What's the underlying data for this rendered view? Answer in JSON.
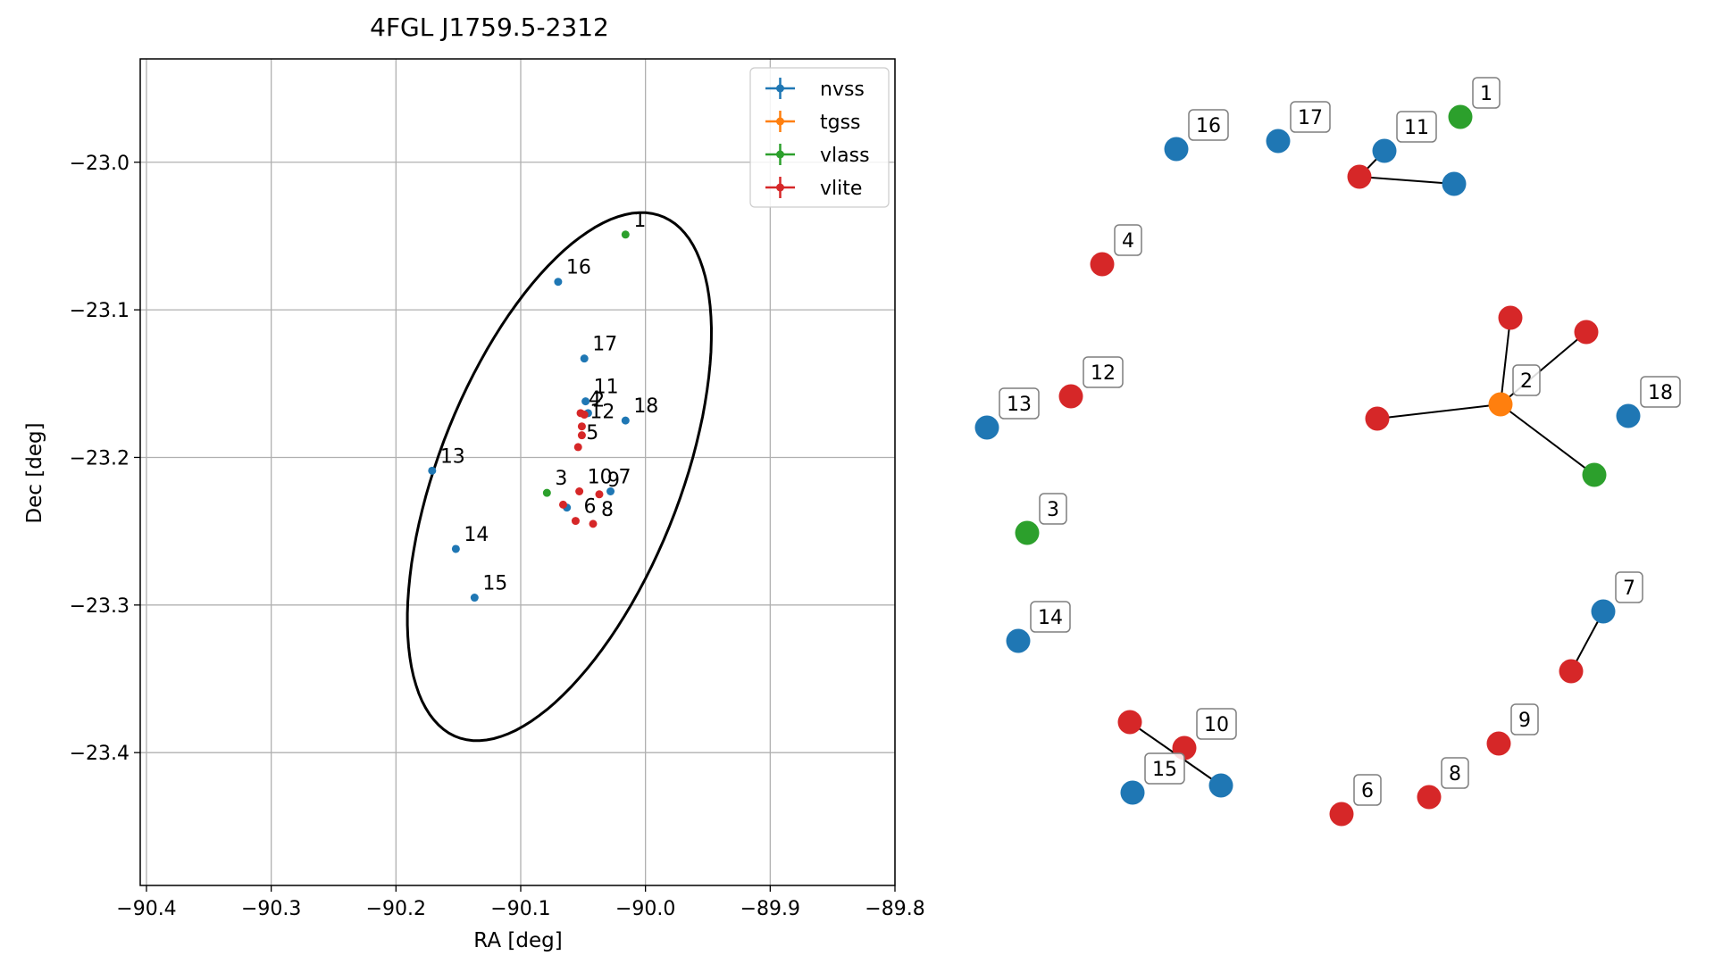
{
  "chart_data": [
    {
      "type": "scatter",
      "title": "4FGL J1759.5-2312",
      "xlabel": "RA [deg]",
      "ylabel": "Dec [deg]",
      "xlim": [
        -90.405,
        -89.8
      ],
      "ylim": [
        -23.49,
        -22.93
      ],
      "x_ticks": [
        -90.4,
        -90.3,
        -90.2,
        -90.1,
        -90.0,
        -89.9,
        -89.8
      ],
      "x_tick_labels": [
        "−90.4",
        "−90.3",
        "−90.2",
        "−90.1",
        "−90.0",
        "−89.9",
        "−89.8"
      ],
      "y_ticks": [
        -23.0,
        -23.1,
        -23.2,
        -23.3,
        -23.4
      ],
      "y_tick_labels": [
        "−23.0",
        "−23.1",
        "−23.2",
        "−23.3",
        "−23.4"
      ],
      "grid": true,
      "legend_position": "top-right",
      "series": [
        {
          "name": "nvss",
          "color": "#1f77b4",
          "points": [
            {
              "label": "16",
              "x": -90.07,
              "y": -23.081
            },
            {
              "label": "17",
              "x": -90.049,
              "y": -23.133
            },
            {
              "label": "11",
              "x": -90.048,
              "y": -23.162
            },
            {
              "label": "18",
              "x": -90.016,
              "y": -23.175
            },
            {
              "label": "13",
              "x": -90.171,
              "y": -23.209
            },
            {
              "label": "7",
              "x": -90.028,
              "y": -23.223
            },
            {
              "label": "",
              "x": -90.046,
              "y": -23.17
            },
            {
              "label": "",
              "x": -90.063,
              "y": -23.234
            },
            {
              "label": "14",
              "x": -90.152,
              "y": -23.262
            },
            {
              "label": "15",
              "x": -90.137,
              "y": -23.295
            }
          ]
        },
        {
          "name": "tgss",
          "color": "#ff7f0e",
          "points": []
        },
        {
          "name": "vlass",
          "color": "#2ca02c",
          "points": [
            {
              "label": "1",
              "x": -90.016,
              "y": -23.049
            },
            {
              "label": "3",
              "x": -90.079,
              "y": -23.224
            }
          ]
        },
        {
          "name": "vlite",
          "color": "#d62728",
          "points": [
            {
              "label": "4",
              "x": -90.052,
              "y": -23.17
            },
            {
              "label": "2",
              "x": -90.049,
              "y": -23.171
            },
            {
              "label": "12",
              "x": -90.051,
              "y": -23.179
            },
            {
              "label": "",
              "x": -90.051,
              "y": -23.185
            },
            {
              "label": "5",
              "x": -90.054,
              "y": -23.193
            },
            {
              "label": "9",
              "x": -90.037,
              "y": -23.225
            },
            {
              "label": "10",
              "x": -90.053,
              "y": -23.223
            },
            {
              "label": "",
              "x": -90.066,
              "y": -23.232
            },
            {
              "label": "6",
              "x": -90.056,
              "y": -23.243
            },
            {
              "label": "8",
              "x": -90.042,
              "y": -23.245
            }
          ]
        }
      ],
      "ellipse": {
        "center_x": -90.069,
        "center_y": -23.213,
        "semi_axis_a": 0.195,
        "semi_axis_b": 0.094,
        "angle_deg": 63
      }
    },
    {
      "type": "network",
      "nodes": [
        {
          "id": "n1",
          "label": "1",
          "color": "#2ca02c"
        },
        {
          "id": "n16",
          "label": "16",
          "color": "#1f77b4"
        },
        {
          "id": "n17",
          "label": "17",
          "color": "#1f77b4"
        },
        {
          "id": "n11",
          "label": "11",
          "color": "#1f77b4"
        },
        {
          "id": "n11b",
          "label": "",
          "color": "#1f77b4"
        },
        {
          "id": "n11r",
          "label": "",
          "color": "#d62728"
        },
        {
          "id": "n4",
          "label": "4",
          "color": "#d62728"
        },
        {
          "id": "n12",
          "label": "12",
          "color": "#d62728"
        },
        {
          "id": "n13",
          "label": "13",
          "color": "#1f77b4"
        },
        {
          "id": "n2",
          "label": "2",
          "color": "#ff7f0e"
        },
        {
          "id": "n2a",
          "label": "",
          "color": "#d62728"
        },
        {
          "id": "n2b",
          "label": "",
          "color": "#d62728"
        },
        {
          "id": "n2c",
          "label": "",
          "color": "#d62728"
        },
        {
          "id": "n2d",
          "label": "",
          "color": "#2ca02c"
        },
        {
          "id": "n18",
          "label": "18",
          "color": "#1f77b4"
        },
        {
          "id": "n3",
          "label": "3",
          "color": "#2ca02c"
        },
        {
          "id": "n14",
          "label": "14",
          "color": "#1f77b4"
        },
        {
          "id": "n7",
          "label": "7",
          "color": "#1f77b4"
        },
        {
          "id": "n7r",
          "label": "",
          "color": "#d62728"
        },
        {
          "id": "n10",
          "label": "10",
          "color": "#d62728"
        },
        {
          "id": "n10a",
          "label": "",
          "color": "#d62728"
        },
        {
          "id": "n15b",
          "label": "",
          "color": "#1f77b4"
        },
        {
          "id": "n15",
          "label": "15",
          "color": "#1f77b4"
        },
        {
          "id": "n9",
          "label": "9",
          "color": "#d62728"
        },
        {
          "id": "n8",
          "label": "8",
          "color": "#d62728"
        },
        {
          "id": "n6",
          "label": "6",
          "color": "#d62728"
        }
      ],
      "edges": [
        [
          "n11r",
          "n11b"
        ],
        [
          "n11r",
          "n11"
        ],
        [
          "n2",
          "n2a"
        ],
        [
          "n2",
          "n2b"
        ],
        [
          "n2",
          "n2c"
        ],
        [
          "n2",
          "n2d"
        ],
        [
          "n7",
          "n7r"
        ],
        [
          "n10a",
          "n15b"
        ]
      ]
    }
  ]
}
